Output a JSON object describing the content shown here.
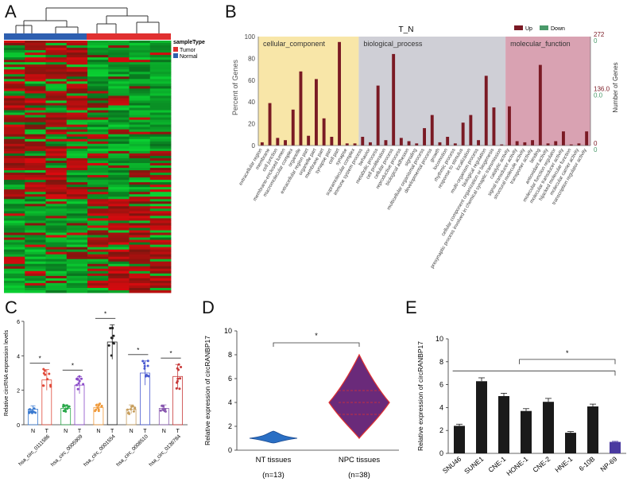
{
  "panel_labels": {
    "a": "A",
    "b": "B",
    "c": "C",
    "d": "D",
    "e": "E"
  },
  "colors": {
    "tumor": "#e03030",
    "normal": "#2e5fb0",
    "go_up": "#7a1a24",
    "go_down": "#4a9a6a",
    "cc_bg": "#f8e6a8",
    "bp_bg": "#cfcfd6",
    "mf_bg": "#d9a2b2",
    "violin_nt": "#2a6fc4",
    "violin_npc": "#6a2a7a",
    "violin_edge": "#e03030",
    "bar_black": "#1a1a1a",
    "bar_np69": "#4a3aa0"
  },
  "heatmap": {
    "legend_title": "sampleType",
    "legend_items": [
      {
        "label": "Tumor",
        "color": "#e03030"
      },
      {
        "label": "Normal",
        "color": "#2e5fb0"
      }
    ]
  },
  "go_chart": {
    "title": "T_N",
    "legend": [
      {
        "label": "Up",
        "color": "#7a1a24"
      },
      {
        "label": "Down",
        "color": "#4a9a6a"
      }
    ],
    "y_left_label": "Percent of Genes",
    "y_right_label": "Number of Genes",
    "y_left_ticks": [
      "100",
      "80",
      "60",
      "40",
      "20",
      "0"
    ],
    "y_right_ticks_up": [
      "272",
      "136.0",
      "0"
    ],
    "y_right_ticks_down": [
      "0",
      "0.0",
      "0"
    ],
    "sections": [
      {
        "name": "cellular_component",
        "start": 0,
        "end": 17
      },
      {
        "name": "biological_process",
        "start": 17,
        "end": 44
      },
      {
        "name": "molecular_function",
        "start": 44,
        "end": 60
      }
    ]
  },
  "chart_data": [
    {
      "type": "bar",
      "title": "T_N",
      "ylabel": "Percent of Genes",
      "y2label": "Number of Genes",
      "ylim": [
        0,
        100
      ],
      "categories": [
        "extracellular region",
        "membrane",
        "cell junction",
        "membrane-enclosed lumen",
        "macromolecular complex",
        "organelle",
        "extracellular region part",
        "organelle part",
        "membrane part",
        "synapse part",
        "cell part",
        "synapse",
        "supramolecular complex",
        "immune system process",
        "behavior",
        "metabolic process",
        "cell proliferation",
        "cellular process",
        "reproductive process",
        "biological adhesion",
        "signaling",
        "multicellular organismal process",
        "developmental process",
        "growth",
        "locomotion",
        "rhythmic process",
        "response to stimulus",
        "localization",
        "multi-organism process",
        "biological regulation",
        "cellular component organization or biogenesis",
        "presynaptic process involved in chemical synaptic transmission",
        "catalytic activity",
        "signal transducer activity",
        "structural molecule activity",
        "transporter activity",
        "binding",
        "antioxidant activity",
        "molecular function regulator",
        "molecular transducer activity",
        "hijacked molecular function",
        "molecular carrier activity",
        "transcription regulator activity"
      ],
      "series": [
        {
          "name": "Up",
          "values": [
            3,
            39,
            7,
            5,
            33,
            68,
            9,
            61,
            25,
            8,
            95,
            2,
            2,
            8,
            3,
            55,
            5,
            84,
            7,
            4,
            2,
            16,
            28,
            3,
            8,
            2,
            21,
            28,
            5,
            64,
            35,
            1,
            36,
            4,
            3,
            5,
            74,
            2,
            4,
            13,
            1,
            2,
            13
          ]
        }
      ]
    },
    {
      "type": "scatter",
      "ylabel": "Relative circRNA expression levels",
      "ylim": [
        0,
        6
      ],
      "y_ticks": [
        "0",
        "2",
        "4",
        "6"
      ],
      "groups": [
        {
          "circ": "hsa_circ_0111586",
          "n_label": "N",
          "t_label": "T",
          "n_mean": 0.9,
          "n_sd": 0.2,
          "t_mean": 2.6,
          "t_sd": 0.6,
          "sig": "*"
        },
        {
          "circ": "hsa_circ_0005909",
          "n_label": "N",
          "t_label": "T",
          "n_mean": 0.95,
          "n_sd": 0.2,
          "t_mean": 2.3,
          "t_sd": 0.5,
          "sig": "*"
        },
        {
          "circ": "hsa_circ_0001554",
          "n_label": "N",
          "t_label": "T",
          "n_mean": 1.0,
          "n_sd": 0.2,
          "t_mean": 4.8,
          "t_sd": 1.0,
          "sig": "*"
        },
        {
          "circ": "hsa_circ_0008510",
          "n_label": "N",
          "t_label": "T",
          "n_mean": 0.9,
          "n_sd": 0.25,
          "t_mean": 3.0,
          "t_sd": 0.7,
          "sig": "*"
        },
        {
          "circ": "hsa_circ_0136784",
          "n_label": "N",
          "t_label": "T",
          "n_mean": 0.95,
          "n_sd": 0.2,
          "t_mean": 2.8,
          "t_sd": 0.7,
          "sig": "*"
        }
      ]
    },
    {
      "type": "violin",
      "ylabel": "Relative expression of circRANBP17",
      "ylim": [
        0,
        10
      ],
      "y_ticks": [
        "0",
        "2",
        "4",
        "6",
        "8",
        "10"
      ],
      "sig": "*",
      "groups": [
        {
          "label": "NT tissues",
          "n": "(n=13)",
          "min": 0.6,
          "max": 1.6,
          "median": 1.0
        },
        {
          "label": "NPC tissues",
          "n": "(n=38)",
          "min": 1.0,
          "max": 8.0,
          "median": 4.0,
          "q1": 3.0,
          "q3": 5.0
        }
      ]
    },
    {
      "type": "bar",
      "ylabel": "Relative expression of circRANBP17",
      "ylim": [
        0,
        10
      ],
      "y_ticks": [
        "0",
        "2",
        "4",
        "6",
        "8",
        "10"
      ],
      "sig": "*",
      "categories": [
        "SNU46",
        "SUNE1",
        "CNE-1",
        "HONE-1",
        "CNE-2",
        "HNE-1",
        "6-10B",
        "NP-69"
      ],
      "values": [
        2.4,
        6.3,
        5.0,
        3.7,
        4.5,
        1.8,
        4.1,
        1.0
      ],
      "errors": [
        0.15,
        0.3,
        0.25,
        0.2,
        0.3,
        0.1,
        0.2,
        0.05
      ]
    }
  ]
}
